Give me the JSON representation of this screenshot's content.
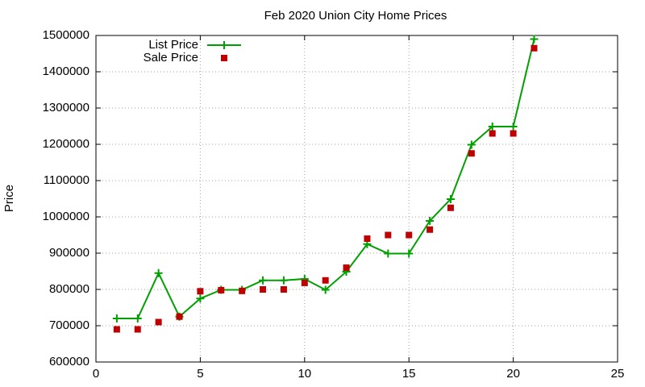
{
  "chart_data": {
    "type": "line",
    "title": "Feb 2020 Union City Home Prices",
    "y_label": "Price",
    "x": [
      1,
      2,
      3,
      4,
      5,
      6,
      7,
      8,
      9,
      10,
      11,
      12,
      13,
      14,
      15,
      16,
      17,
      18,
      19,
      20,
      21
    ],
    "series": [
      {
        "name": "List Price",
        "color": "#00a000",
        "style": "linespoints",
        "marker": "plus",
        "values": [
          720000,
          720000,
          845000,
          725000,
          775000,
          799000,
          799000,
          825000,
          825000,
          829000,
          799000,
          849000,
          925000,
          899000,
          899000,
          989000,
          1049000,
          1199000,
          1249000,
          1249000,
          1490000
        ]
      },
      {
        "name": "Sale Price",
        "color": "#c00000",
        "style": "points",
        "marker": "square",
        "values": [
          690000,
          690000,
          710000,
          725000,
          795000,
          798000,
          796000,
          800000,
          800000,
          818000,
          825000,
          860000,
          940000,
          950000,
          950000,
          965000,
          1025000,
          1175000,
          1230000,
          1230000,
          1465000
        ]
      }
    ],
    "xlim": [
      0,
      25
    ],
    "xticks": [
      0,
      5,
      10,
      15,
      20,
      25
    ],
    "ylim": [
      600000,
      1500000
    ],
    "yticks": [
      600000,
      700000,
      800000,
      900000,
      1000000,
      1100000,
      1200000,
      1300000,
      1400000,
      1500000
    ],
    "grid": true,
    "legend": "top-left"
  }
}
